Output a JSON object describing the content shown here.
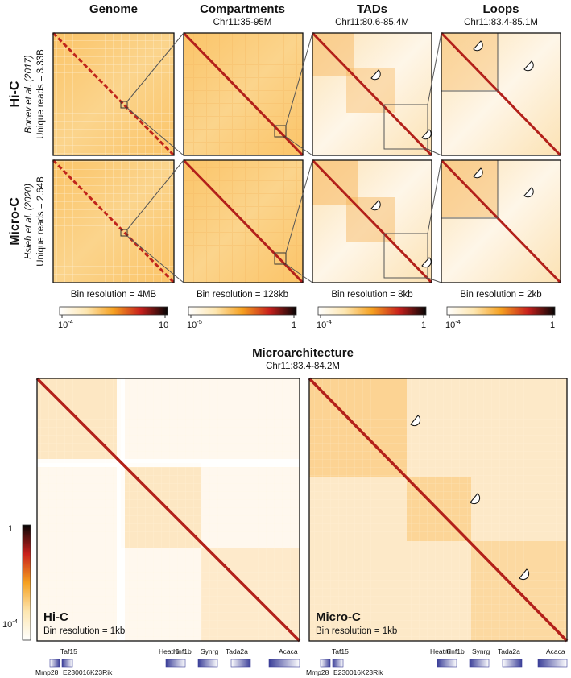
{
  "columns": [
    {
      "title": "Genome",
      "region": ""
    },
    {
      "title": "Compartments",
      "region": "Chr11:35-95M"
    },
    {
      "title": "TADs",
      "region": "Chr11:80.6-85.4M"
    },
    {
      "title": "Loops",
      "region": "Chr11:83.4-85.1M"
    }
  ],
  "rows": [
    {
      "method": "Hi-C",
      "citation": "Bonev et al. (2017)",
      "reads": "Unique reads = 3.33B"
    },
    {
      "method": "Micro-C",
      "citation": "Hsieh et al. (2020)",
      "reads": "Unique reads = 2.64B"
    }
  ],
  "resolutions": [
    "Bin resolution = 4MB",
    "Bin resolution = 128kb",
    "Bin resolution = 8kb",
    "Bin resolution = 2kb"
  ],
  "colorbars": [
    {
      "min": "10",
      "min_exp": "-4",
      "max": "10"
    },
    {
      "min": "10",
      "min_exp": "-5",
      "max": "1"
    },
    {
      "min": "10",
      "min_exp": "-4",
      "max": "1"
    },
    {
      "min": "10",
      "min_exp": "-4",
      "max": "1"
    }
  ],
  "micro": {
    "title": "Microarchitecture",
    "region": "Chr11:83.4-84.2M",
    "panels": [
      {
        "method": "Hi-C",
        "resolution": "Bin resolution = 1kb"
      },
      {
        "method": "Micro-C",
        "resolution": "Bin resolution = 1kb"
      }
    ],
    "colorbar": {
      "max": "1",
      "min": "10",
      "min_exp": "-4"
    }
  },
  "genes_top": [
    "Taf15",
    "Heatr6",
    "Hnf1b",
    "Synrg",
    "Tada2a",
    "Acaca"
  ],
  "genes_bottom": [
    "Mmp28",
    "E230016K23Rik"
  ],
  "colors": {
    "map_bg": "#fbd48c",
    "map_light": "#fdf3e0",
    "diagonal": "#b3201a",
    "gene_box": "#4b4fa3",
    "frame": "#111111"
  }
}
